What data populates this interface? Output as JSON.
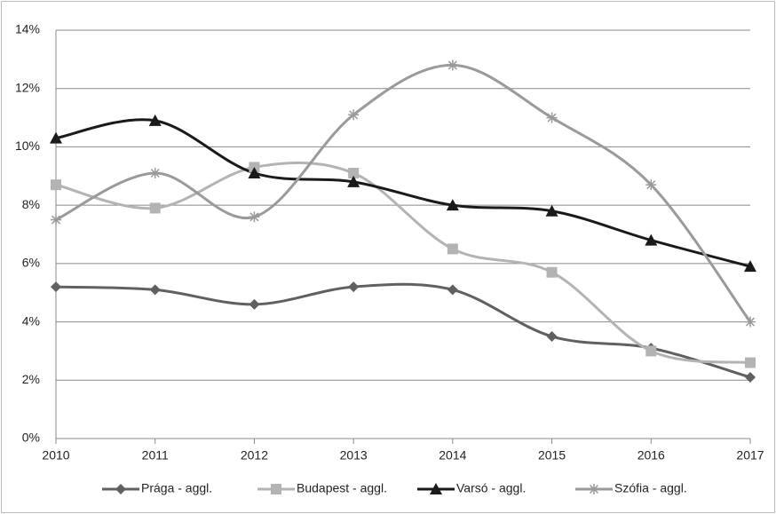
{
  "chart_data": {
    "type": "line",
    "smooth": true,
    "categories": [
      "2010",
      "2011",
      "2012",
      "2013",
      "2014",
      "2015",
      "2016",
      "2017"
    ],
    "series": [
      {
        "name": "Prága - aggl.",
        "color": "#606060",
        "marker": "diamond",
        "values": [
          5.2,
          5.1,
          4.6,
          5.2,
          5.1,
          3.5,
          3.1,
          2.1
        ]
      },
      {
        "name": "Budapest - aggl.",
        "color": "#b3b3b3",
        "marker": "square",
        "values": [
          8.7,
          7.9,
          9.3,
          9.1,
          6.5,
          5.7,
          3.0,
          2.6
        ]
      },
      {
        "name": "Varsó - aggl.",
        "color": "#1a1a1a",
        "marker": "triangle",
        "values": [
          10.3,
          10.9,
          9.1,
          8.8,
          8.0,
          7.8,
          6.8,
          5.9
        ]
      },
      {
        "name": "Szófia - aggl.",
        "color": "#9a9a9a",
        "marker": "star",
        "values": [
          7.5,
          9.1,
          7.6,
          11.1,
          12.8,
          11.0,
          8.7,
          4.0
        ]
      }
    ],
    "ylim": [
      0,
      14
    ],
    "yticks": [
      {
        "value": 0,
        "label": "0%"
      },
      {
        "value": 2,
        "label": "2%"
      },
      {
        "value": 4,
        "label": "4%"
      },
      {
        "value": 6,
        "label": "6%"
      },
      {
        "value": 8,
        "label": "8%"
      },
      {
        "value": 10,
        "label": "10%"
      },
      {
        "value": 12,
        "label": "12%"
      },
      {
        "value": 14,
        "label": "14%"
      }
    ],
    "grid": true,
    "legend": "bottom"
  }
}
